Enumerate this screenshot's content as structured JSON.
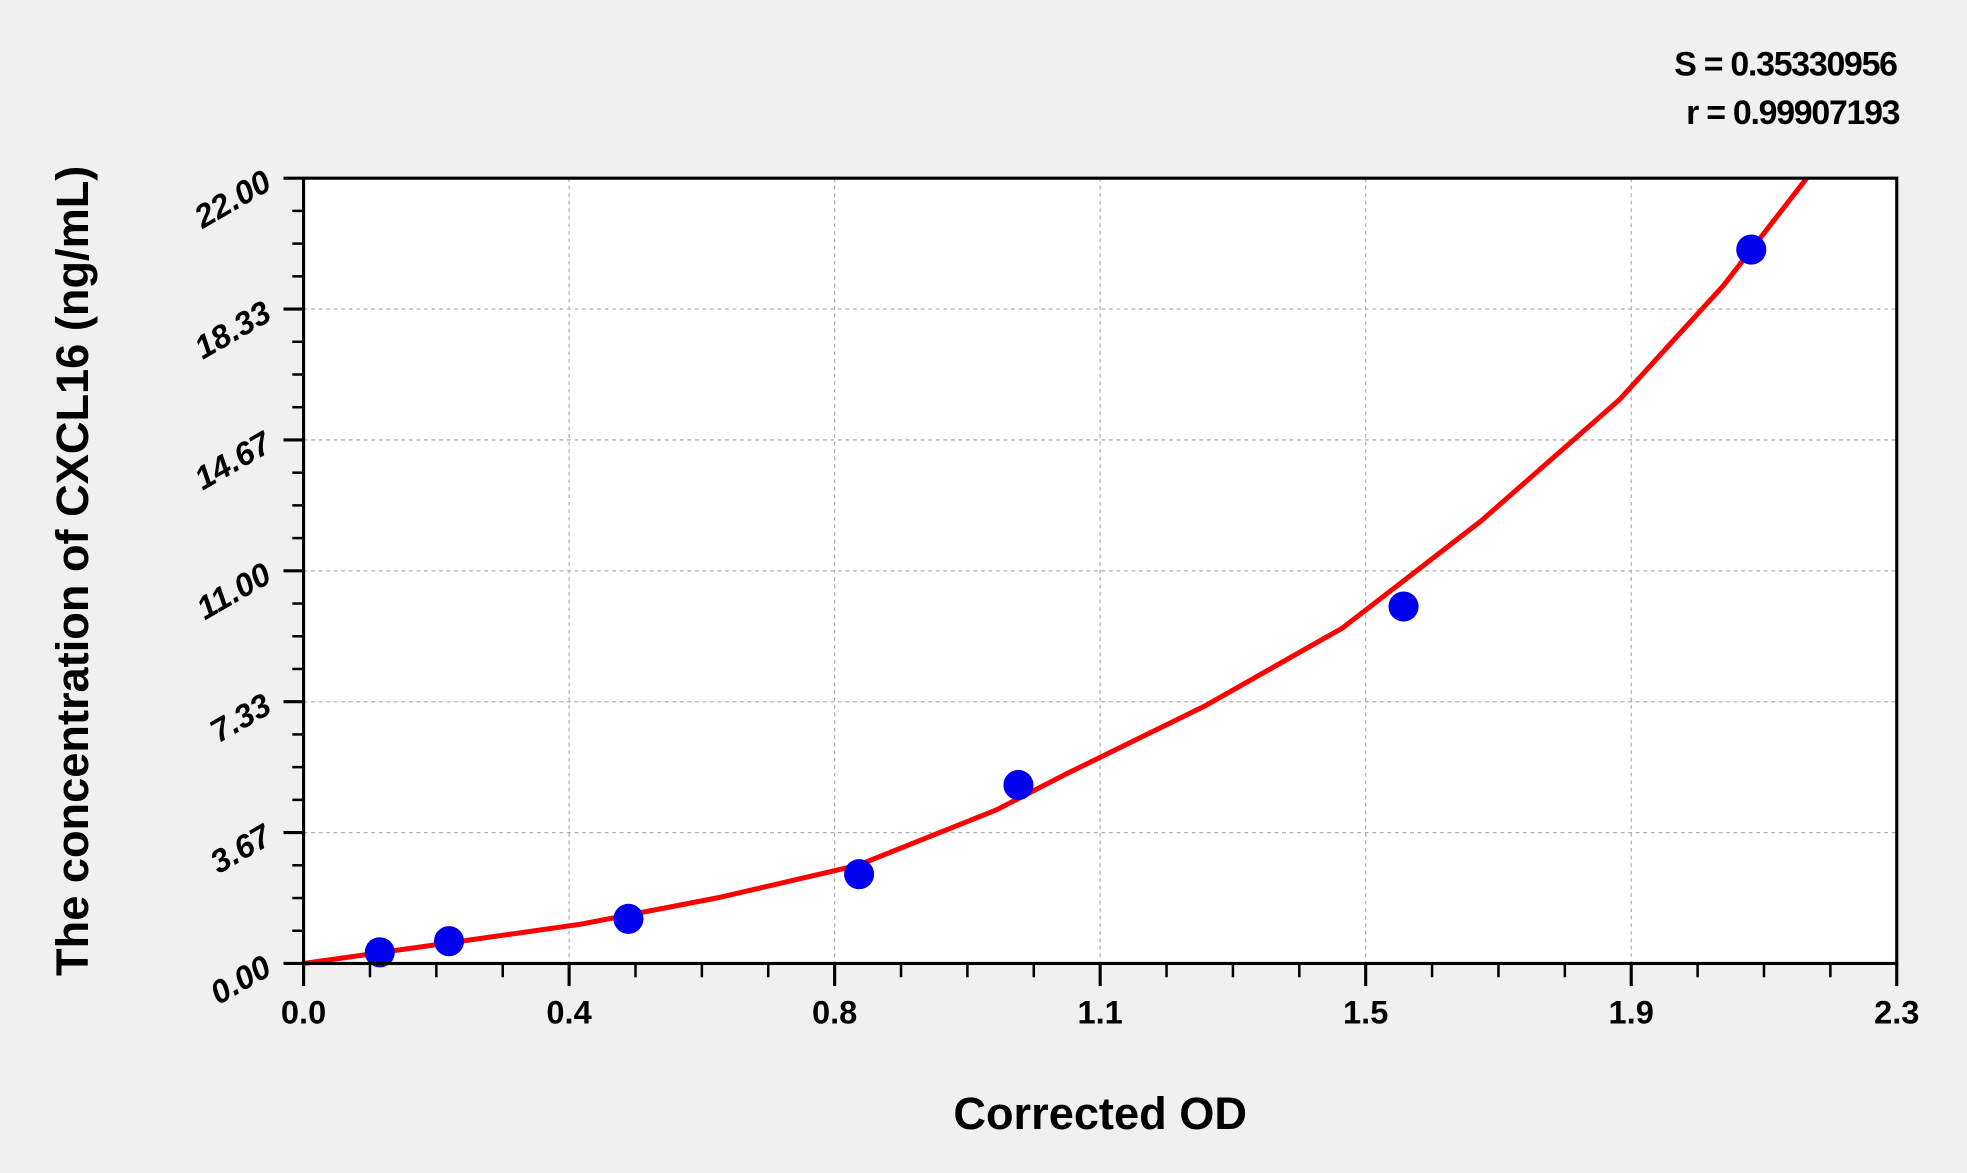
{
  "chart_data": {
    "type": "scatter",
    "xlabel": "Corrected OD",
    "ylabel": "The concentration of CXCL16 (ng/mL)",
    "xlim": [
      0,
      2.3
    ],
    "ylim": [
      0,
      22
    ],
    "x_tick_labels": [
      "0.0",
      "0.4",
      "0.8",
      "1.1",
      "1.5",
      "1.9",
      "2.3"
    ],
    "y_tick_labels": [
      "0.00",
      "3.67",
      "7.33",
      "11.00",
      "14.67",
      "18.33",
      "22.00"
    ],
    "grid": true,
    "annotations": [
      "S = 0.35330956",
      "r = 0.99907193"
    ],
    "points": {
      "color": "#0000ee",
      "x": [
        0.11,
        0.21,
        0.469,
        0.802,
        1.032,
        1.588,
        2.09
      ],
      "y": [
        0.312,
        0.625,
        1.25,
        2.5,
        5.0,
        10.0,
        20.0
      ]
    },
    "fit_curve": {
      "color": "#ff0000",
      "x": [
        0,
        0.2,
        0.4,
        0.6,
        0.8,
        1.0,
        1.1,
        1.3,
        1.5,
        1.7,
        1.9,
        2.05,
        2.17
      ],
      "y": [
        0,
        0.55,
        1.1,
        1.85,
        2.75,
        4.3,
        5.3,
        7.2,
        9.4,
        12.4,
        15.8,
        19.0,
        22.0
      ]
    }
  }
}
